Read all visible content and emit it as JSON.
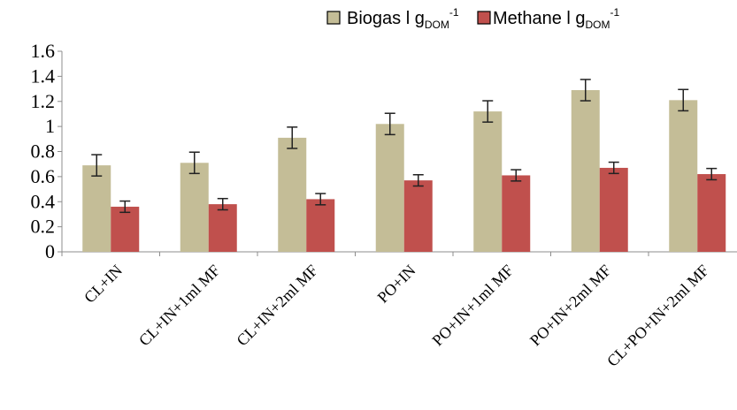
{
  "chart_data": {
    "type": "bar",
    "categories": [
      "CL+IN",
      "CL+IN+1ml MF",
      "CL+IN+2ml MF",
      "PO+IN",
      "PO+IN+1ml MF",
      "PO+IN+2ml MF",
      "CL+PO+IN+2ml MF"
    ],
    "series": [
      {
        "name": "Biogas l gDOM-1",
        "legend_main": "Biogas l g",
        "legend_sub": "DOM",
        "legend_sup": "-1",
        "color": "#c4bd97",
        "values": [
          0.69,
          0.71,
          0.91,
          1.02,
          1.12,
          1.29,
          1.21
        ],
        "errors": [
          0.085,
          0.085,
          0.085,
          0.085,
          0.085,
          0.085,
          0.085
        ]
      },
      {
        "name": "Methane l gDOM-1",
        "legend_main": "Methane l g",
        "legend_sub": "DOM",
        "legend_sup": "-1",
        "color": "#c0504d",
        "values": [
          0.36,
          0.38,
          0.42,
          0.57,
          0.61,
          0.67,
          0.62
        ],
        "errors": [
          0.045,
          0.045,
          0.045,
          0.045,
          0.045,
          0.045,
          0.045
        ]
      }
    ],
    "ylim": [
      0,
      1.6
    ],
    "yticks": [
      "0",
      "0.2",
      "0.4",
      "0.6",
      "0.8",
      "1",
      "1.2",
      "1.4",
      "1.6"
    ],
    "title": "",
    "xlabel": "",
    "ylabel": "",
    "legend_position": "top",
    "grid": false
  }
}
